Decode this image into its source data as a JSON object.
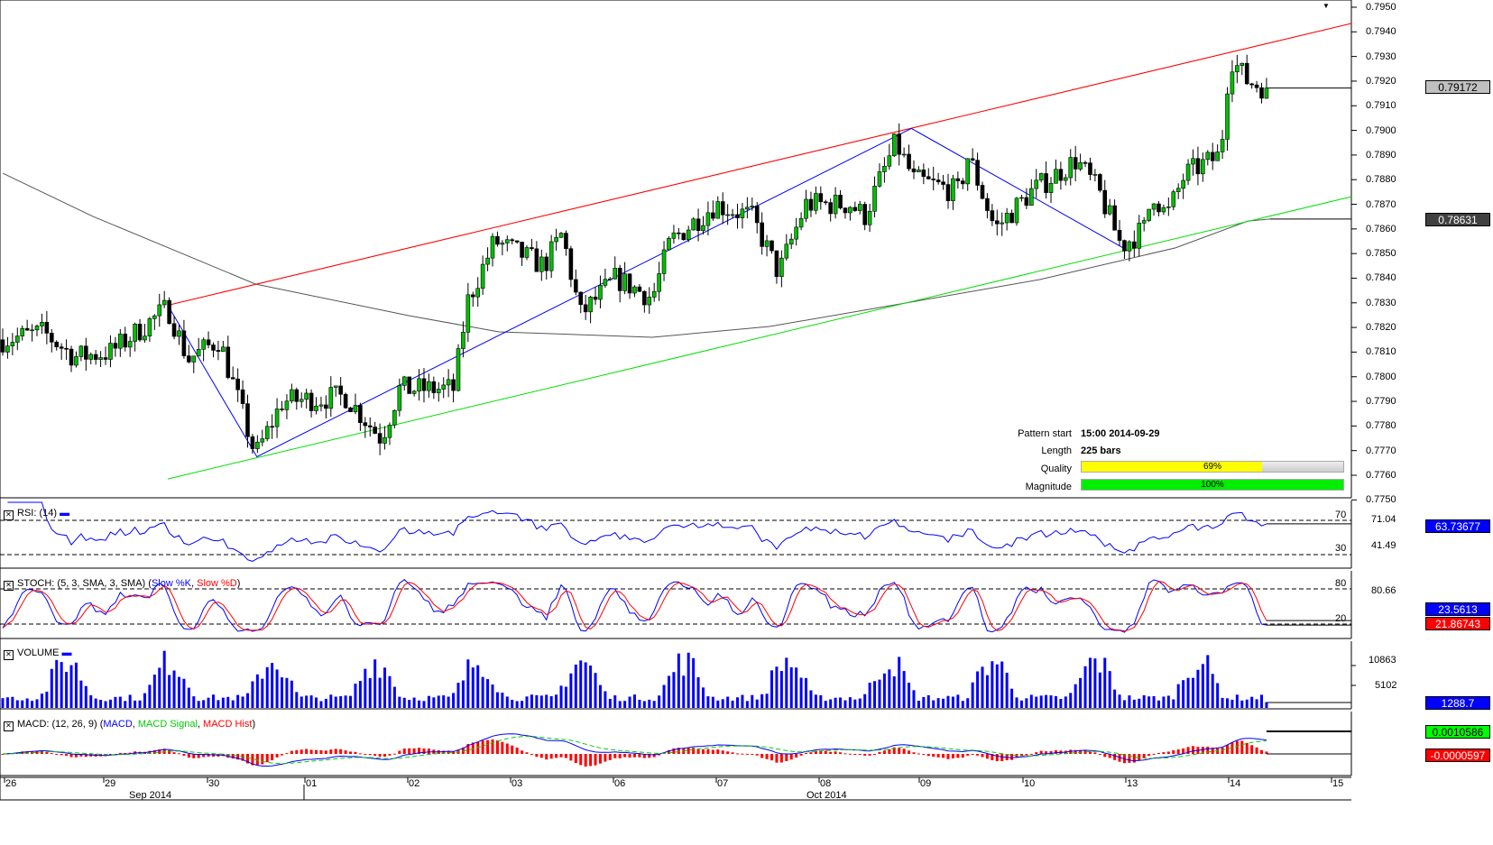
{
  "chart_data": {
    "type": "candlestick",
    "symbol_period_note": "",
    "price_axis": {
      "min": 0.775,
      "max": 0.795,
      "ticks": [
        "0.7950",
        "0.7940",
        "0.7930",
        "0.7920",
        "0.7910",
        "0.7900",
        "0.7890",
        "0.7880",
        "0.7870",
        "0.7860",
        "0.7850",
        "0.7840",
        "0.7830",
        "0.7820",
        "0.7810",
        "0.7800",
        "0.7790",
        "0.7780",
        "0.7770",
        "0.7760",
        "0.7750"
      ]
    },
    "bars_total": 259,
    "close_waypoints": [
      [
        0,
        0.7815
      ],
      [
        8.3,
        0.7818
      ],
      [
        14.7,
        0.7808
      ],
      [
        22.1,
        0.781
      ],
      [
        33.7,
        0.7828
      ],
      [
        37.8,
        0.7807
      ],
      [
        44.2,
        0.7815
      ],
      [
        51.6,
        0.7768
      ],
      [
        57.1,
        0.779
      ],
      [
        70,
        0.7792
      ],
      [
        77.3,
        0.7775
      ],
      [
        81,
        0.7795
      ],
      [
        92.1,
        0.7795
      ],
      [
        94.8,
        0.783
      ],
      [
        100.4,
        0.7855
      ],
      [
        110.5,
        0.7845
      ],
      [
        114.2,
        0.7858
      ],
      [
        117.9,
        0.7825
      ],
      [
        125.2,
        0.784
      ],
      [
        132.6,
        0.7832
      ],
      [
        136.3,
        0.7855
      ],
      [
        145.5,
        0.787
      ],
      [
        152.9,
        0.7865
      ],
      [
        158.4,
        0.7842
      ],
      [
        163.9,
        0.787
      ],
      [
        173.1,
        0.787
      ],
      [
        175.9,
        0.7865
      ],
      [
        182.3,
        0.7895
      ],
      [
        186,
        0.788
      ],
      [
        195.2,
        0.7875
      ],
      [
        197.1,
        0.789
      ],
      [
        202.6,
        0.786
      ],
      [
        209.9,
        0.7875
      ],
      [
        219.2,
        0.7888
      ],
      [
        223.8,
        0.7875
      ],
      [
        228.4,
        0.7853
      ],
      [
        233,
        0.786
      ],
      [
        234.8,
        0.7875
      ],
      [
        237.6,
        0.7865
      ],
      [
        241.3,
        0.7882
      ],
      [
        248.6,
        0.789
      ],
      [
        250.5,
        0.793
      ],
      [
        254.1,
        0.792
      ],
      [
        258,
        0.79172
      ]
    ],
    "moving_average": [
      [
        0,
        0.78826
      ],
      [
        18.4,
        0.78651
      ],
      [
        51.6,
        0.78376
      ],
      [
        82.9,
        0.78248
      ],
      [
        101.3,
        0.78182
      ],
      [
        132.6,
        0.7816
      ],
      [
        156.6,
        0.78204
      ],
      [
        184.2,
        0.78299
      ],
      [
        211.6,
        0.78394
      ],
      [
        239.4,
        0.78523
      ],
      [
        254.2,
        0.78632
      ],
      [
        258.7,
        0.7864
      ]
    ],
    "channel_upper": [
      [
        33.7,
        0.7829
      ],
      [
        275.9,
        0.79434
      ]
    ],
    "channel_lower": [
      [
        33.7,
        0.77585
      ],
      [
        275.9,
        0.78731
      ]
    ],
    "zigzag": [
      [
        33.7,
        0.7829
      ],
      [
        51.9,
        0.77675
      ],
      [
        185.5,
        0.79008
      ],
      [
        229,
        0.7852
      ]
    ],
    "last_price": "0.79172",
    "support_price": "0.78631",
    "time_axis": {
      "day_labels": [
        "26",
        "29",
        "30",
        "01",
        "02",
        "03",
        "06",
        "07",
        "08",
        "09",
        "10",
        "13",
        "14",
        "15"
      ],
      "month_labels": [
        "Sep 2014",
        "Oct 2014"
      ]
    },
    "pattern": {
      "start_label": "Pattern start",
      "start": "15:00 2014-09-29",
      "length_label": "Length",
      "length": "225 bars",
      "quality_label": "Quality",
      "quality": 69,
      "quality_text": "69%",
      "magnitude_label": "Magnitude",
      "magnitude": 100,
      "magnitude_text": "100%"
    },
    "rsi": {
      "title": "RSI: (14)",
      "level_high": "70",
      "level_low": "30",
      "axis_hidden": "71.04",
      "axis_label": "41.49",
      "current": "63.73677"
    },
    "stoch": {
      "title": "STOCH: (5, 3, SMA, 3, SMA)",
      "k_name": "Slow %K",
      "d_name": "Slow %D",
      "level_high": "80",
      "level_low": "20",
      "axis_label": "80.66",
      "k_current": "23.5613",
      "d_current": "21.86743"
    },
    "volume": {
      "title": "VOLUME",
      "axis_labels": [
        "10863",
        "5102"
      ],
      "current": "1288.7"
    },
    "macd": {
      "title": "MACD: (12, 26, 9)",
      "macd_name": "MACD",
      "signal_name": "MACD Signal",
      "hist_name": "MACD Hist",
      "current_macd": "0.0010586",
      "current_hist": "-0.0000597"
    },
    "colors": {
      "up": "#00c000",
      "down": "#000000",
      "upper": "#ff0000",
      "lower": "#00e000",
      "zigzag": "#0000ff",
      "ma": "#555555",
      "rsi": "#0000ff",
      "k": "#0000ff",
      "d": "#ff0000",
      "volume": "#0000ff",
      "macd": "#0000ff",
      "signal": "#00d000",
      "hist": "#ff0000",
      "quality": "#ffff00",
      "magnitude": "#00ee00"
    }
  }
}
